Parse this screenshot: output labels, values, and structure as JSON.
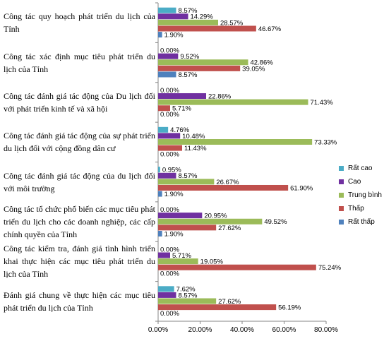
{
  "chart_data": {
    "type": "bar",
    "orientation": "horizontal",
    "categories": [
      "Công tác quy hoạch phát triển du lịch của Tỉnh",
      "Công tác xác định mục tiêu phát triển du lịch của Tỉnh",
      "Công tác đánh giá tác động của Du lịch đối với phát triển kinh tế và xã hội",
      "Công tác đánh giá tác động của sự phát triển du lịch đối với cộng đồng dân cư",
      "Công tác đánh giá tác động của du lịch đối với môi trường",
      "Công tác tổ chức phổ biến các mục tiêu phát triển du lịch cho các doanh nghiệp, các cấp chính quyền của Tỉnh",
      "Công tác kiểm tra, đánh giá tình hình triển khai thực hiện các mục tiêu phát triển du lịch của Tỉnh",
      "Đánh giá chung về thực hiện các mục tiêu phát triển du lịch của Tỉnh"
    ],
    "series": [
      {
        "name": "Rất cao",
        "color": "#4bacc6",
        "values": [
          8.57,
          0,
          0,
          4.76,
          0.95,
          0,
          0,
          7.62
        ],
        "labels": [
          "8.57%",
          "0.00%",
          "0.00%",
          "4.76%",
          "0.95%",
          "0.00%",
          "0.00%",
          "7.62%"
        ]
      },
      {
        "name": "Cao",
        "color": "#7030a0",
        "values": [
          14.29,
          9.52,
          22.86,
          10.48,
          8.57,
          20.95,
          5.71,
          8.57
        ],
        "labels": [
          "14.29%",
          "9.52%",
          "22.86%",
          "10.48%",
          "8.57%",
          "20.95%",
          "5.71%",
          "8.57%"
        ]
      },
      {
        "name": "Trung bình",
        "color": "#9bbb59",
        "values": [
          28.57,
          42.86,
          71.43,
          73.33,
          26.67,
          49.52,
          19.05,
          27.62
        ],
        "labels": [
          "28.57%",
          "42.86%",
          "71.43%",
          "73.33%",
          "26.67%",
          "49.52%",
          "19.05%",
          "27.62%"
        ]
      },
      {
        "name": "Thấp",
        "color": "#c0504d",
        "values": [
          46.67,
          39.05,
          5.71,
          11.43,
          61.9,
          27.62,
          75.24,
          56.19
        ],
        "labels": [
          "46.67%",
          "39.05%",
          "5.71%",
          "11.43%",
          "61.90%",
          "27.62%",
          "75.24%",
          "56.19%"
        ]
      },
      {
        "name": "Rất thấp",
        "color": "#4f81bd",
        "values": [
          1.9,
          8.57,
          0,
          0,
          1.9,
          1.9,
          0,
          0
        ],
        "labels": [
          "1.90%",
          "8.57%",
          "0.00%",
          "0.00%",
          "1.90%",
          "1.90%",
          "0.00%",
          "0.00%"
        ]
      }
    ],
    "xlim": [
      0,
      80
    ],
    "xticks": [
      0,
      20,
      40,
      60,
      80
    ],
    "xtick_labels": [
      "0.00%",
      "20.00%",
      "40.00%",
      "60.00%",
      "80.00%"
    ],
    "legend": [
      "Rất cao",
      "Cao",
      "Trung bình",
      "Thấp",
      "Rất thấp"
    ],
    "legend_position": "right",
    "grid": false
  }
}
